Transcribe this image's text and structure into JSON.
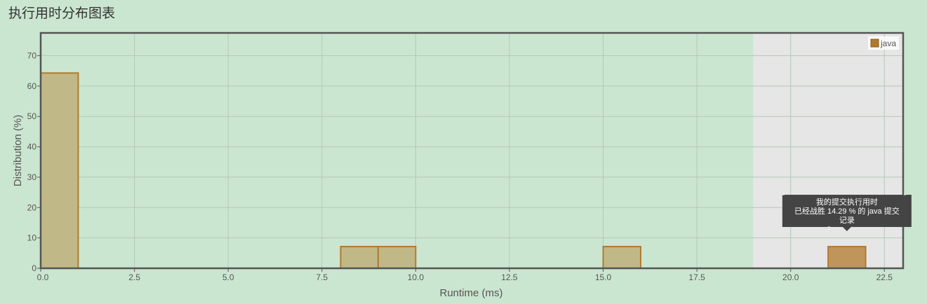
{
  "page": {
    "title": "执行用时分布图表"
  },
  "chart_data": {
    "type": "bar",
    "xlabel": "Runtime (ms)",
    "ylabel": "Distribution (%)",
    "xlim": [
      0,
      23
    ],
    "ylim": [
      0,
      77.5
    ],
    "x_ticks": [
      0.0,
      2.5,
      5.0,
      7.5,
      10.0,
      12.5,
      15.0,
      17.5,
      20.0,
      22.5
    ],
    "x_tick_labels": [
      "0.0",
      "2.5",
      "5.0",
      "7.5",
      "10.0",
      "12.5",
      "15.0",
      "17.5",
      "20.0",
      "22.5"
    ],
    "y_ticks": [
      0,
      10,
      20,
      30,
      40,
      50,
      60,
      70
    ],
    "y_tick_labels": [
      "0",
      "10",
      "20",
      "30",
      "40",
      "50",
      "60",
      "70"
    ],
    "grid": true,
    "legend_position": "top-right",
    "series": [
      {
        "name": "java",
        "color": "#b07a2e",
        "bars": [
          {
            "x0": 0,
            "x1": 1,
            "value": 64.29,
            "highlight": false
          },
          {
            "x0": 8,
            "x1": 9,
            "value": 7.14,
            "highlight": false
          },
          {
            "x0": 9,
            "x1": 10,
            "value": 7.14,
            "highlight": false
          },
          {
            "x0": 15,
            "x1": 16,
            "value": 7.14,
            "highlight": false
          },
          {
            "x0": 21,
            "x1": 22,
            "value": 7.14,
            "highlight": true
          }
        ]
      }
    ],
    "shaded_region": {
      "x0": 19,
      "x1": 23,
      "color": "#e6e6e6"
    },
    "tooltip": {
      "line1": "我的提交执行用时",
      "line2": "已经战胜 14.29 % 的 java 提交",
      "line3": "记录"
    }
  },
  "colors": {
    "background": "#cbe6d0",
    "bar_fill": "#c0b987",
    "bar_highlight_fill": "#c0955c",
    "bar_stroke": "#b07a2e",
    "grid": "#b4c8b8",
    "tooltip_bg": "#444444"
  }
}
